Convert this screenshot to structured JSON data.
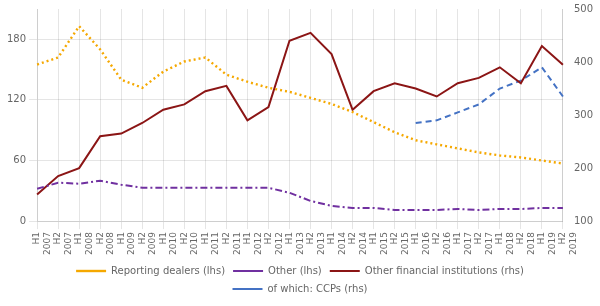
{
  "chart_data": {
    "type": "line",
    "categories": [
      "H1\n2007",
      "H2\n2007",
      "H1\n2008",
      "H2\n2008",
      "H1\n2009",
      "H2\n2009",
      "H1\n2010",
      "H2\n2010",
      "H1\n2011",
      "H2\n2011",
      "H1\n2012",
      "H2\n2012",
      "H1\n2013",
      "H2\n2013",
      "H1\n2014",
      "H2\n2014",
      "H1\n2015",
      "H2\n2015",
      "H1\n2016",
      "H2\n2016",
      "H1\n2017",
      "H2\n2017",
      "H1\n2018",
      "H2\n2018",
      "H1\n2019",
      "H2\n2019"
    ],
    "series": [
      {
        "name": "Reporting dealers (lhs)",
        "color": "#f5a800",
        "line_style": "dotted",
        "values": [
          155,
          162,
          193,
          170,
          140,
          132,
          148,
          158,
          162,
          145,
          138,
          132,
          128,
          122,
          116,
          108,
          98,
          88,
          80,
          76,
          72,
          68,
          65,
          63,
          60,
          57
        ]
      },
      {
        "name": "Other (lhs)",
        "color": "#7030a0",
        "line_style": "dashdot",
        "values": [
          32,
          38,
          37,
          40,
          36,
          33,
          33,
          33,
          33,
          33,
          33,
          33,
          28,
          20,
          15,
          13,
          13,
          11,
          11,
          11,
          12,
          11,
          12,
          12,
          13,
          13
        ]
      },
      {
        "name": "Other financial institutions (rhs)",
        "color": "#8b1515",
        "line_style": "solid",
        "axis": "y2",
        "values": [
          150,
          185,
          200,
          260,
          265,
          285,
          310,
          320,
          345,
          355,
          290,
          315,
          440,
          455,
          415,
          310,
          345,
          360,
          350,
          335,
          360,
          370,
          390,
          360,
          430,
          395
        ]
      },
      {
        "name": "of which: CCPs (rhs)",
        "color": "#4472c4",
        "line_style": "dashed",
        "axis": "y2",
        "values": [
          null,
          null,
          null,
          null,
          null,
          null,
          null,
          null,
          null,
          null,
          null,
          null,
          null,
          null,
          null,
          null,
          null,
          null,
          285,
          290,
          305,
          320,
          350,
          365,
          390,
          335
        ]
      }
    ],
    "ylim": [
      0,
      210
    ],
    "yticks": [
      0,
      60,
      120,
      180
    ],
    "y2lim": [
      100,
      500
    ],
    "y2ticks": [
      100,
      200,
      300,
      400,
      500
    ],
    "grid": true,
    "legend": "bottom"
  }
}
